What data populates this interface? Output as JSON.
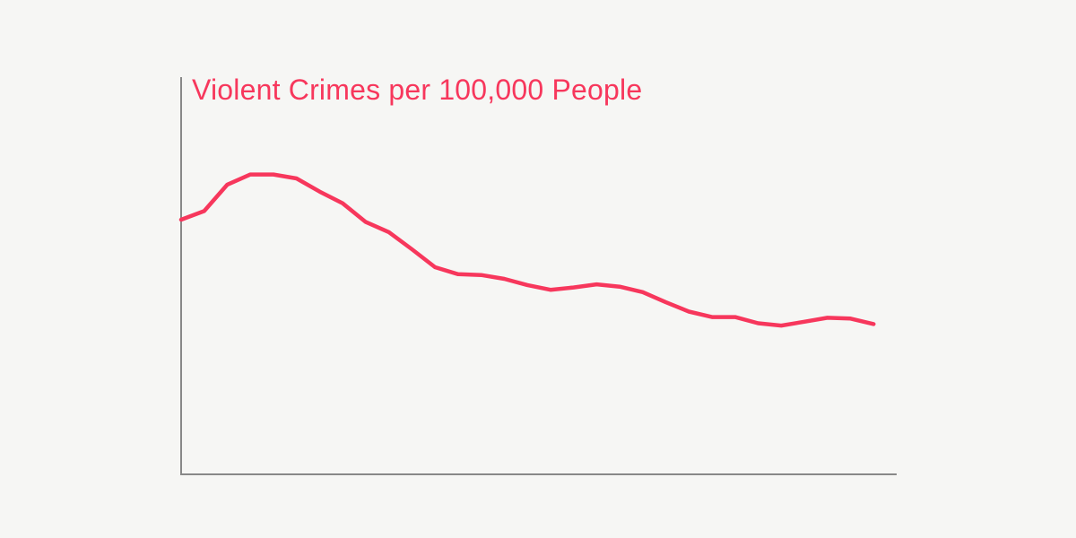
{
  "chart_data": {
    "type": "line",
    "title": "Violent Crimes per 100,000 People",
    "xlabel": "",
    "ylabel": "",
    "grid": false,
    "legend": "none",
    "colors": {
      "line": "#f7375c",
      "axis": "#888888",
      "title": "#f7375c"
    },
    "x": [
      1,
      2,
      3,
      4,
      5,
      6,
      7,
      8,
      9,
      10,
      11,
      12,
      13,
      14,
      15,
      16,
      17,
      18,
      19,
      20,
      21,
      22,
      23,
      24,
      25,
      26,
      27,
      28,
      29,
      30,
      31
    ],
    "series": [
      {
        "values": [
          747,
          758,
          792,
          805,
          805,
          800,
          783,
          768,
          744,
          731,
          709,
          686,
          677,
          676,
          671,
          663,
          657,
          660,
          664,
          661,
          654,
          641,
          629,
          622,
          622,
          614,
          611,
          616,
          621,
          620,
          613
        ]
      }
    ],
    "xlim": [
      1,
      32
    ],
    "ylim": [
      420,
      960
    ]
  }
}
